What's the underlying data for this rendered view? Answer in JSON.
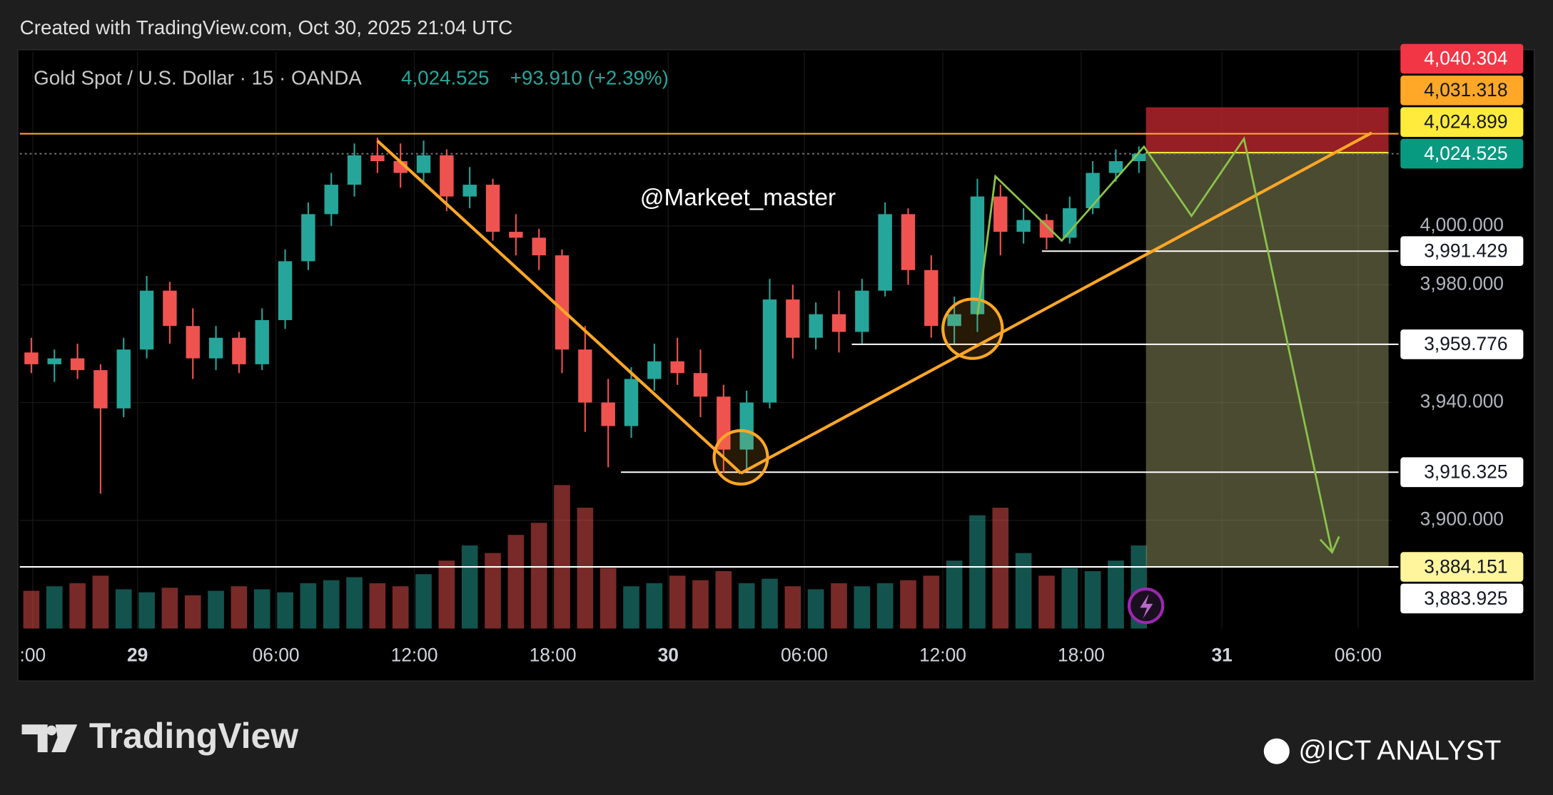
{
  "header": {
    "created": "Created with TradingView.com, Oct 30, 2025 21:04 UTC"
  },
  "chart_data": {
    "type": "candlestick",
    "title": "Gold Spot / U.S. Dollar · 15 · OANDA",
    "last_price": {
      "value": 4024.525,
      "label": "4,024.525"
    },
    "change": "+93.910 (+2.39%)",
    "watermark": "@Markeet_master",
    "open": [
      3957,
      3953,
      3955,
      3951,
      3938,
      3958,
      3978,
      3966,
      3955,
      3962,
      3953,
      3968,
      3988,
      4004,
      4014,
      4024,
      4022,
      4018,
      4024,
      4010,
      4014,
      3998,
      3996,
      3990,
      3958,
      3940,
      3932,
      3948,
      3954,
      3950,
      3942,
      3924,
      3940,
      3975,
      3962,
      3970,
      3964,
      3978,
      4004,
      3985,
      3966,
      3970,
      4010,
      3998,
      4002,
      3996,
      4006,
      4018,
      4022
    ],
    "high": [
      3962,
      3958,
      3960,
      3953,
      3962,
      3983,
      3981,
      3972,
      3966,
      3964,
      3972,
      3992,
      4008,
      4018,
      4028,
      4030,
      4028,
      4029,
      4026,
      4020,
      4016,
      4004,
      3999,
      3992,
      3966,
      3948,
      3952,
      3960,
      3962,
      3958,
      3946,
      3944,
      3982,
      3980,
      3974,
      3978,
      3982,
      4008,
      4006,
      3990,
      3976,
      4016,
      4014,
      4006,
      4004,
      4010,
      4022,
      4026,
      4027
    ],
    "low": [
      3950,
      3947,
      3948,
      3909,
      3935,
      3955,
      3960,
      3948,
      3951,
      3950,
      3951,
      3965,
      3985,
      4000,
      4010,
      4018,
      4013,
      4015,
      4005,
      4006,
      3995,
      3990,
      3985,
      3950,
      3930,
      3918,
      3928,
      3944,
      3946,
      3935,
      3916,
      3917,
      3938,
      3955,
      3958,
      3957,
      3960,
      3976,
      3980,
      3962,
      3960,
      3964,
      3990,
      3994,
      3992,
      3994,
      4004,
      4015,
      4018
    ],
    "close": [
      3953,
      3955,
      3951,
      3938,
      3958,
      3978,
      3966,
      3955,
      3962,
      3953,
      3968,
      3988,
      4004,
      4014,
      4024,
      4022,
      4018,
      4024,
      4010,
      4014,
      3998,
      3996,
      3990,
      3958,
      3940,
      3932,
      3948,
      3954,
      3950,
      3942,
      3924,
      3940,
      3975,
      3962,
      3970,
      3964,
      3978,
      4004,
      3985,
      3966,
      3970,
      4010,
      3998,
      4002,
      3996,
      4006,
      4018,
      4022,
      4024.525
    ],
    "volume": [
      25,
      28,
      30,
      35,
      26,
      24,
      27,
      22,
      25,
      28,
      26,
      24,
      30,
      32,
      34,
      30,
      28,
      36,
      45,
      55,
      50,
      62,
      70,
      95,
      80,
      40,
      28,
      30,
      35,
      32,
      38,
      30,
      33,
      28,
      26,
      30,
      28,
      30,
      32,
      35,
      45,
      75,
      80,
      50,
      35,
      40,
      38,
      45,
      55
    ],
    "up_color": "#26a69a",
    "down_color": "#ef5350",
    "xlim": [
      -0.5,
      58.95
    ],
    "xticks": [
      {
        "value": 0.06,
        "label": ":00"
      },
      {
        "value": 4.6,
        "label": "29"
      },
      {
        "value": 10.6,
        "label": "06:00"
      },
      {
        "value": 16.6,
        "label": "12:00"
      },
      {
        "value": 22.6,
        "label": "18:00"
      },
      {
        "value": 27.6,
        "label": "30"
      },
      {
        "value": 33.5,
        "label": "06:00"
      },
      {
        "value": 39.5,
        "label": "12:00"
      },
      {
        "value": 45.5,
        "label": "18:00"
      },
      {
        "value": 51.6,
        "label": "31"
      },
      {
        "value": 57.5,
        "label": "06:00"
      }
    ],
    "ylim": [
      3863.2,
      4059.2
    ],
    "yticks": [
      {
        "value": 3900,
        "label": "3,900.000"
      },
      {
        "value": 3940,
        "label": "3,940.000"
      },
      {
        "value": 3980,
        "label": "3,980.000"
      },
      {
        "value": 4000,
        "label": "4,000.000"
      }
    ],
    "grid": true,
    "levels": [
      {
        "value": 4040.304,
        "label": "4,040.304",
        "color": "#f23645"
      },
      {
        "value": 4031.318,
        "label": "4,031.318",
        "color": "#ffa726"
      },
      {
        "value": 4024.899,
        "label": "4,024.899",
        "color": "#ffeb3b"
      },
      {
        "value": 4024.525,
        "label": "4,024.525",
        "color": "#089981"
      },
      {
        "value": 3991.429,
        "label": "3,991.429",
        "color": "#ffffff"
      },
      {
        "value": 3959.776,
        "label": "3,959.776",
        "color": "#ffffff"
      },
      {
        "value": 3916.325,
        "label": "3,916.325",
        "color": "#ffffff"
      },
      {
        "value": 3884.151,
        "label": "3,884.151",
        "color": "#fff59d"
      },
      {
        "value": 3883.925,
        "label": "3,883.925",
        "color": "#ffffff"
      }
    ],
    "position": {
      "stop": 4040.304,
      "entry": 4024.899,
      "target": 3884.151
    }
  },
  "footer": {
    "logo": "TradingView",
    "credit": "@ICT ANALYST"
  }
}
